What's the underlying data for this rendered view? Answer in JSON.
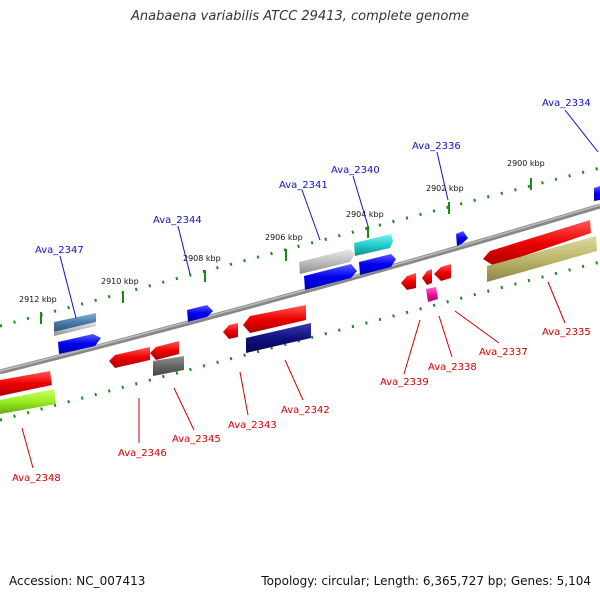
{
  "title": "Anabaena variabilis ATCC 29413, complete genome",
  "footer": {
    "accession": "Accession: NC_007413",
    "summary": "Topology: circular; Length: 6,365,727 bp; Genes: 5,104"
  },
  "ticks": [
    "2912 kbp",
    "2910 kbp",
    "2908 kbp",
    "2906 kbp",
    "2904 kbp",
    "2902 kbp",
    "2900 kbp"
  ],
  "genes_forward": [
    "Ava_2347",
    "Ava_2344",
    "Ava_2341",
    "Ava_2340",
    "Ava_2336",
    "Ava_2334"
  ],
  "genes_reverse": [
    "Ava_2348",
    "Ava_2346",
    "Ava_2345",
    "Ava_2343",
    "Ava_2342",
    "Ava_2339",
    "Ava_2338",
    "Ava_2337",
    "Ava_2335"
  ],
  "colors": {
    "label_forward": "#1010cc",
    "label_reverse": "#d40000",
    "tick_marks": "#1a8a1a",
    "backbone": "#8a8a8a"
  }
}
